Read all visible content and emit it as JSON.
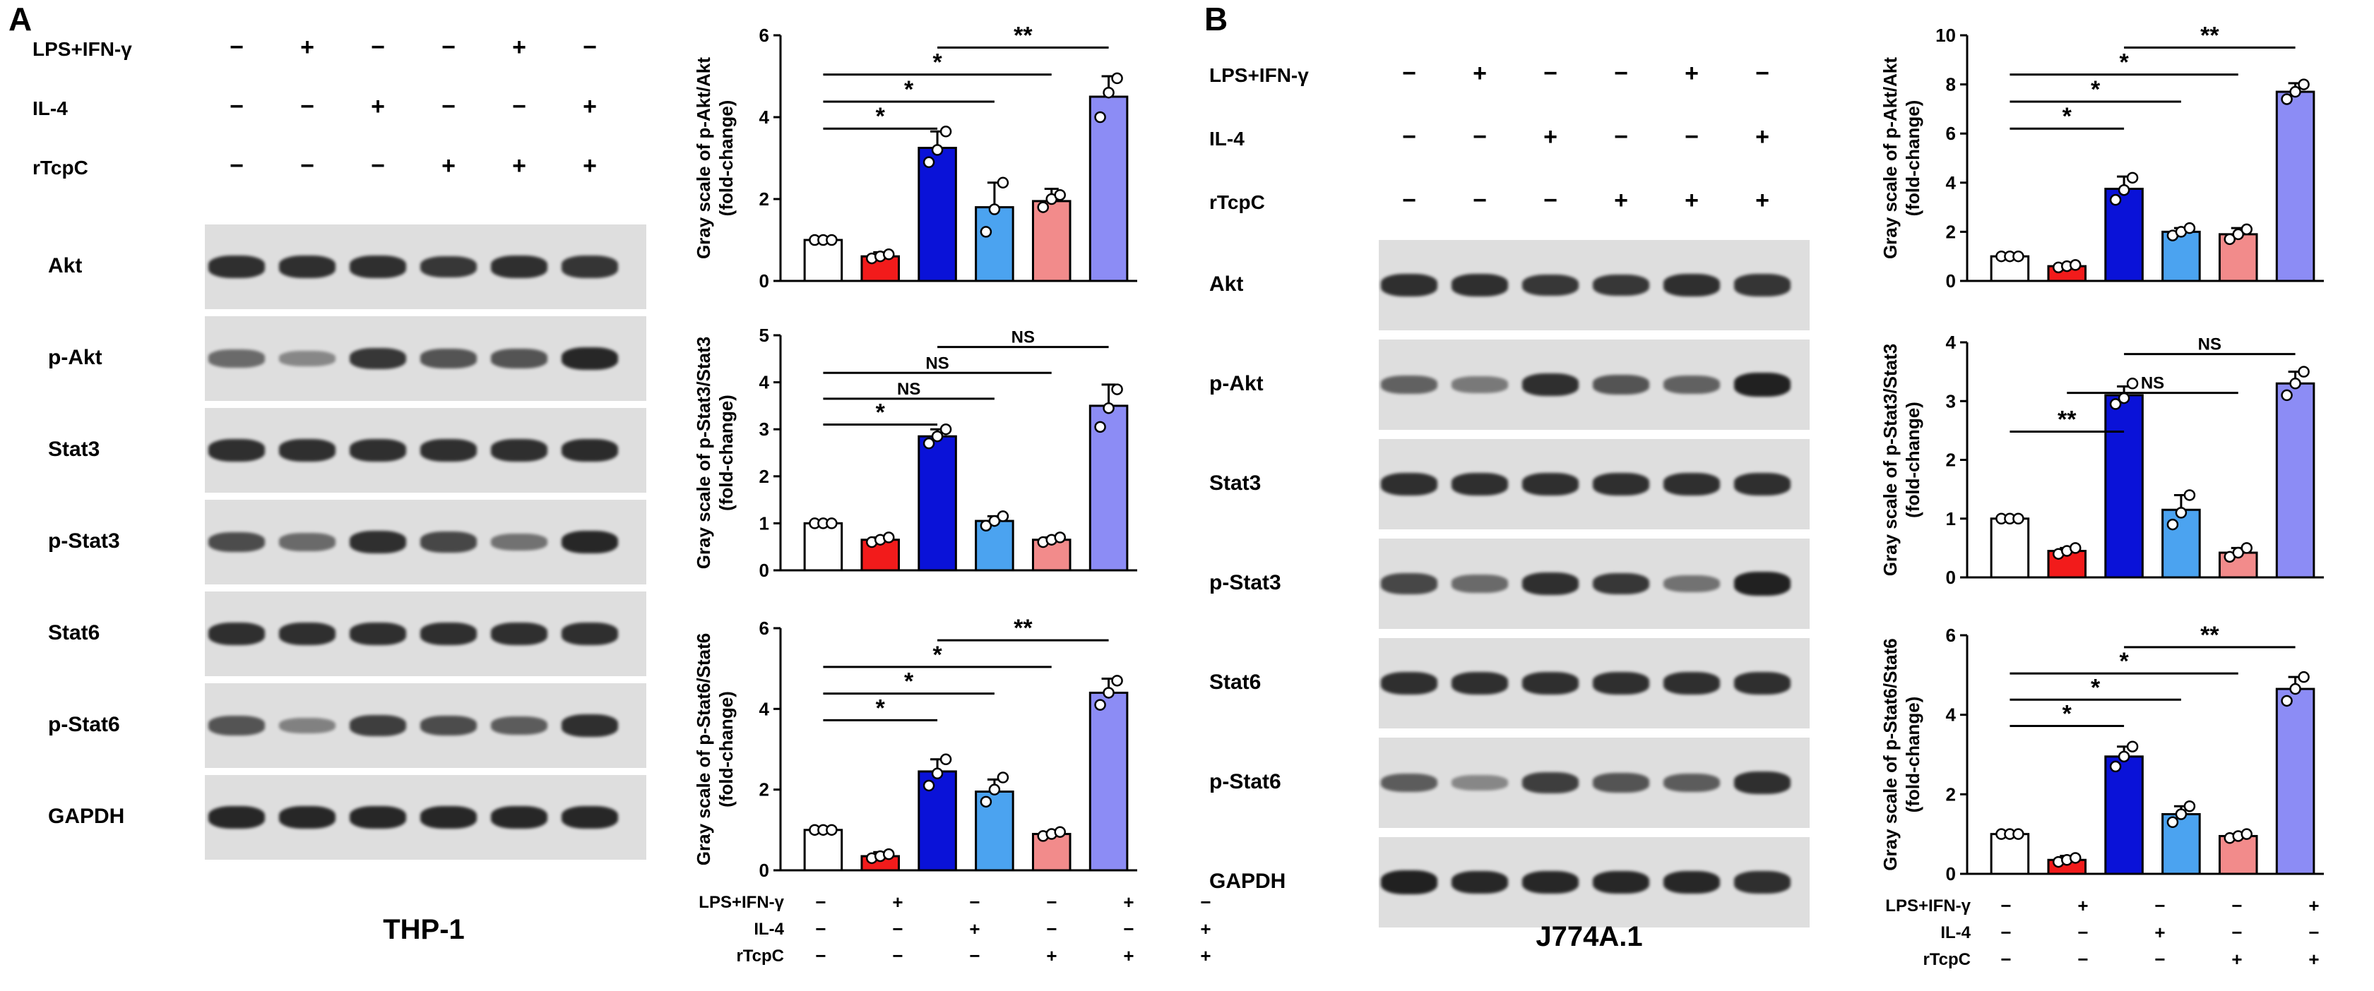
{
  "panels": [
    {
      "letter": "A",
      "cell_line": "THP-1",
      "conditions": [
        {
          "label": "LPS+IFN-γ",
          "signs": [
            "−",
            "+",
            "−",
            "−",
            "+",
            "−"
          ]
        },
        {
          "label": "IL-4",
          "signs": [
            "−",
            "−",
            "+",
            "−",
            "−",
            "+"
          ]
        },
        {
          "label": "rTcpC",
          "signs": [
            "−",
            "−",
            "−",
            "+",
            "+",
            "+"
          ]
        }
      ],
      "blots": [
        {
          "label": "Akt",
          "intensities": [
            0.85,
            0.85,
            0.85,
            0.8,
            0.85,
            0.82
          ]
        },
        {
          "label": "p-Akt",
          "intensities": [
            0.45,
            0.25,
            0.8,
            0.6,
            0.6,
            0.9
          ]
        },
        {
          "label": "Stat3",
          "intensities": [
            0.85,
            0.85,
            0.85,
            0.85,
            0.85,
            0.88
          ]
        },
        {
          "label": "p-Stat3",
          "intensities": [
            0.65,
            0.45,
            0.85,
            0.7,
            0.4,
            0.9
          ]
        },
        {
          "label": "Stat6",
          "intensities": [
            0.85,
            0.85,
            0.85,
            0.85,
            0.85,
            0.85
          ]
        },
        {
          "label": "p-Stat6",
          "intensities": [
            0.6,
            0.3,
            0.75,
            0.65,
            0.55,
            0.85
          ]
        },
        {
          "label": "GAPDH",
          "intensities": [
            0.9,
            0.9,
            0.9,
            0.9,
            0.9,
            0.9
          ]
        }
      ]
    },
    {
      "letter": "B",
      "cell_line": "J774A.1",
      "conditions": [
        {
          "label": "LPS+IFN-γ",
          "signs": [
            "−",
            "+",
            "−",
            "−",
            "+",
            "−"
          ]
        },
        {
          "label": "IL-4",
          "signs": [
            "−",
            "−",
            "+",
            "−",
            "−",
            "+"
          ]
        },
        {
          "label": "rTcpC",
          "signs": [
            "−",
            "−",
            "−",
            "+",
            "+",
            "+"
          ]
        }
      ],
      "blots": [
        {
          "label": "Akt",
          "intensities": [
            0.85,
            0.85,
            0.8,
            0.8,
            0.85,
            0.82
          ]
        },
        {
          "label": "p-Akt",
          "intensities": [
            0.5,
            0.35,
            0.85,
            0.6,
            0.5,
            0.95
          ]
        },
        {
          "label": "Stat3",
          "intensities": [
            0.85,
            0.85,
            0.85,
            0.85,
            0.85,
            0.85
          ]
        },
        {
          "label": "p-Stat3",
          "intensities": [
            0.7,
            0.45,
            0.85,
            0.8,
            0.4,
            0.95
          ]
        },
        {
          "label": "Stat6",
          "intensities": [
            0.85,
            0.85,
            0.85,
            0.85,
            0.85,
            0.85
          ]
        },
        {
          "label": "p-Stat6",
          "intensities": [
            0.55,
            0.25,
            0.75,
            0.6,
            0.55,
            0.85
          ]
        },
        {
          "label": "GAPDH",
          "intensities": [
            0.95,
            0.9,
            0.9,
            0.9,
            0.9,
            0.85
          ]
        }
      ]
    }
  ],
  "chart_data": [
    {
      "type": "bar",
      "panel": "A",
      "ylabel": "Gray scale of p-Akt/Akt\n(fold-change)",
      "ylim": [
        0,
        6
      ],
      "yticks": [
        0,
        2,
        4,
        6
      ],
      "values": [
        1.0,
        0.6,
        3.25,
        1.8,
        1.95,
        4.5
      ],
      "errors": [
        0.0,
        0.1,
        0.4,
        0.6,
        0.3,
        0.5
      ],
      "points": [
        [
          1,
          1,
          1
        ],
        [
          0.55,
          0.6,
          0.65
        ],
        [
          2.9,
          3.2,
          3.65
        ],
        [
          1.2,
          1.75,
          2.4
        ],
        [
          1.8,
          2.0,
          2.1
        ],
        [
          4.0,
          4.6,
          4.95
        ]
      ],
      "significance": [
        {
          "from": 0,
          "to": 2,
          "label": "*"
        },
        {
          "from": 0,
          "to": 3,
          "label": "*"
        },
        {
          "from": 0,
          "to": 4,
          "label": "*"
        },
        {
          "from": 2,
          "to": 5,
          "label": "**"
        }
      ]
    },
    {
      "type": "bar",
      "panel": "A",
      "ylabel": "Gray scale of p-Stat3/Stat3\n(fold-change)",
      "ylim": [
        0,
        5
      ],
      "yticks": [
        0,
        1,
        2,
        3,
        4,
        5
      ],
      "values": [
        1.0,
        0.65,
        2.85,
        1.05,
        0.65,
        3.5
      ],
      "errors": [
        0.0,
        0.05,
        0.15,
        0.1,
        0.05,
        0.45
      ],
      "points": [
        [
          1,
          1,
          1
        ],
        [
          0.6,
          0.65,
          0.7
        ],
        [
          2.7,
          2.85,
          3.0
        ],
        [
          0.95,
          1.05,
          1.15
        ],
        [
          0.6,
          0.65,
          0.7
        ],
        [
          3.05,
          3.45,
          3.85
        ]
      ],
      "significance": [
        {
          "from": 0,
          "to": 2,
          "label": "*"
        },
        {
          "from": 0,
          "to": 3,
          "label": "NS"
        },
        {
          "from": 0,
          "to": 4,
          "label": "NS"
        },
        {
          "from": 2,
          "to": 5,
          "label": "NS"
        }
      ]
    },
    {
      "type": "bar",
      "panel": "A",
      "ylabel": "Gray scale of p-Stat6/Stat6\n(fold-change)",
      "ylim": [
        0,
        6
      ],
      "yticks": [
        0,
        2,
        4,
        6
      ],
      "values": [
        1.0,
        0.35,
        2.45,
        1.95,
        0.9,
        4.4
      ],
      "errors": [
        0.0,
        0.1,
        0.3,
        0.3,
        0.05,
        0.35
      ],
      "points": [
        [
          1,
          1,
          1
        ],
        [
          0.3,
          0.35,
          0.4
        ],
        [
          2.1,
          2.4,
          2.75
        ],
        [
          1.7,
          2.0,
          2.3
        ],
        [
          0.85,
          0.9,
          0.95
        ],
        [
          4.1,
          4.4,
          4.7
        ]
      ],
      "significance": [
        {
          "from": 0,
          "to": 2,
          "label": "*"
        },
        {
          "from": 0,
          "to": 3,
          "label": "*"
        },
        {
          "from": 0,
          "to": 4,
          "label": "*"
        },
        {
          "from": 2,
          "to": 5,
          "label": "**"
        }
      ]
    },
    {
      "type": "bar",
      "panel": "B",
      "ylabel": "Gray scale of p-Akt/Akt\n(fold-change)",
      "ylim": [
        0,
        10
      ],
      "yticks": [
        0,
        2,
        4,
        6,
        8,
        10
      ],
      "values": [
        1.0,
        0.6,
        3.75,
        2.0,
        1.9,
        7.7
      ],
      "errors": [
        0.0,
        0.1,
        0.5,
        0.15,
        0.25,
        0.35
      ],
      "points": [
        [
          1,
          1,
          1
        ],
        [
          0.55,
          0.6,
          0.65
        ],
        [
          3.3,
          3.7,
          4.2
        ],
        [
          1.85,
          2.0,
          2.15
        ],
        [
          1.7,
          1.9,
          2.1
        ],
        [
          7.4,
          7.7,
          8.0
        ]
      ],
      "significance": [
        {
          "from": 0,
          "to": 2,
          "label": "*"
        },
        {
          "from": 0,
          "to": 3,
          "label": "*"
        },
        {
          "from": 0,
          "to": 4,
          "label": "*"
        },
        {
          "from": 2,
          "to": 5,
          "label": "**"
        }
      ]
    },
    {
      "type": "bar",
      "panel": "B",
      "ylabel": "Gray scale of p-Stat3/Stat3\n(fold-change)",
      "ylim": [
        0,
        4
      ],
      "yticks": [
        0,
        1,
        2,
        3,
        4
      ],
      "values": [
        1.0,
        0.45,
        3.1,
        1.15,
        0.42,
        3.3
      ],
      "errors": [
        0.0,
        0.05,
        0.15,
        0.25,
        0.08,
        0.2
      ],
      "points": [
        [
          1,
          1,
          1
        ],
        [
          0.4,
          0.45,
          0.5
        ],
        [
          2.95,
          3.05,
          3.3
        ],
        [
          0.9,
          1.1,
          1.4
        ],
        [
          0.35,
          0.42,
          0.5
        ],
        [
          3.1,
          3.3,
          3.5
        ]
      ],
      "significance": [
        {
          "from": 0,
          "to": 2,
          "label": "**"
        },
        {
          "from": 1,
          "to": 4,
          "label": "NS"
        },
        {
          "from": 2,
          "to": 5,
          "label": "NS"
        }
      ]
    },
    {
      "type": "bar",
      "panel": "B",
      "ylabel": "Gray scale of p-Stat6/Stat6\n(fold-change)",
      "ylim": [
        0,
        6
      ],
      "yticks": [
        0,
        2,
        4,
        6
      ],
      "values": [
        1.0,
        0.35,
        2.95,
        1.5,
        0.95,
        4.65
      ],
      "errors": [
        0.0,
        0.1,
        0.25,
        0.2,
        0.05,
        0.3
      ],
      "points": [
        [
          1,
          1,
          1
        ],
        [
          0.3,
          0.35,
          0.4
        ],
        [
          2.7,
          2.95,
          3.2
        ],
        [
          1.3,
          1.5,
          1.7
        ],
        [
          0.9,
          0.95,
          1.0
        ],
        [
          4.35,
          4.65,
          4.95
        ]
      ],
      "significance": [
        {
          "from": 0,
          "to": 2,
          "label": "*"
        },
        {
          "from": 0,
          "to": 3,
          "label": "*"
        },
        {
          "from": 0,
          "to": 4,
          "label": "*"
        },
        {
          "from": 2,
          "to": 5,
          "label": "**"
        }
      ]
    }
  ],
  "chart_conditions": [
    {
      "label": "LPS+IFN-γ",
      "signs": [
        "−",
        "+",
        "−",
        "−",
        "+",
        "−"
      ]
    },
    {
      "label": "IL-4",
      "signs": [
        "−",
        "−",
        "+",
        "−",
        "−",
        "+"
      ]
    },
    {
      "label": "rTcpC",
      "signs": [
        "−",
        "−",
        "−",
        "+",
        "+",
        "+"
      ]
    }
  ],
  "colors": {
    "bars": [
      "#ffffff",
      "#f21b1b",
      "#0a12d8",
      "#4ba3f0",
      "#f28b8b",
      "#8c8cf5"
    ],
    "blot_bg": "#dedede",
    "band": "#1a1a1a"
  }
}
